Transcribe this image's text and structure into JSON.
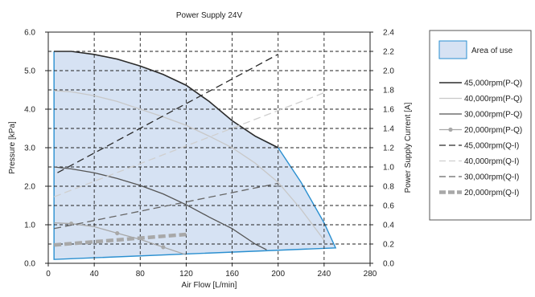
{
  "chart_data": {
    "type": "line",
    "title": "Power Supply 24V",
    "xlabel": "Air Flow [L/min]",
    "ylabel": "Pressure [kPa]",
    "y2label": "Power Supply Current [A]",
    "xlim": [
      0,
      280
    ],
    "ylim": [
      0,
      6
    ],
    "y2lim": [
      0,
      2.4
    ],
    "xticks": [
      "0",
      "40",
      "80",
      "120",
      "160",
      "200",
      "240",
      "280"
    ],
    "yticks": [
      "0.0",
      "1.0",
      "2.0",
      "3.0",
      "4.0",
      "5.0",
      "6.0"
    ],
    "y2ticks": [
      "0.0",
      "0.2",
      "0.4",
      "0.6",
      "0.8",
      "1.0",
      "1.2",
      "1.4",
      "1.6",
      "1.8",
      "2.0",
      "2.2",
      "2.4"
    ],
    "grid": true,
    "legend_position": "right",
    "area_of_use": {
      "name": "Area of use",
      "points": [
        [
          5,
          5.5
        ],
        [
          20,
          5.5
        ],
        [
          40,
          5.42
        ],
        [
          60,
          5.3
        ],
        [
          80,
          5.12
        ],
        [
          100,
          4.9
        ],
        [
          120,
          4.62
        ],
        [
          140,
          4.2
        ],
        [
          160,
          3.7
        ],
        [
          180,
          3.3
        ],
        [
          200,
          3.0
        ],
        [
          220,
          2.1
        ],
        [
          240,
          1.05
        ],
        [
          250,
          0.4
        ],
        [
          5,
          0.1
        ]
      ],
      "color": "#d6e2f3",
      "edge_color": "#2a8fd0"
    },
    "series": [
      {
        "name": "45,000rpm(P-Q)",
        "axis": "left",
        "style": "solid",
        "color": "#2b2b2b",
        "x": [
          5,
          20,
          40,
          60,
          80,
          100,
          120,
          140,
          160,
          180,
          200
        ],
        "y": [
          5.5,
          5.5,
          5.42,
          5.3,
          5.12,
          4.9,
          4.62,
          4.2,
          3.7,
          3.3,
          3.0
        ]
      },
      {
        "name": "40,000rpm(P-Q)",
        "axis": "left",
        "style": "solid",
        "color": "#c8c8c8",
        "x": [
          5,
          20,
          40,
          60,
          80,
          100,
          120,
          140,
          160,
          180,
          200,
          220,
          240
        ],
        "y": [
          4.48,
          4.45,
          4.35,
          4.2,
          4.0,
          3.8,
          3.58,
          3.3,
          3.0,
          2.6,
          2.1,
          1.4,
          0.6
        ]
      },
      {
        "name": "30,000rpm(P-Q)",
        "axis": "left",
        "style": "solid",
        "color": "#555555",
        "x": [
          5,
          20,
          40,
          60,
          80,
          100,
          120,
          140,
          160,
          180,
          190
        ],
        "y": [
          2.5,
          2.45,
          2.35,
          2.2,
          2.02,
          1.8,
          1.52,
          1.2,
          0.9,
          0.5,
          0.35
        ]
      },
      {
        "name": "20,000rpm(P-Q)",
        "axis": "left",
        "style": "marker",
        "color": "#a8a8a8",
        "x": [
          5,
          20,
          40,
          60,
          80,
          100,
          120
        ],
        "y": [
          1.05,
          1.03,
          0.95,
          0.78,
          0.62,
          0.42,
          0.22
        ]
      },
      {
        "name": "45,000rpm(Q-I)",
        "axis": "right",
        "style": "dash",
        "color": "#2b2b2b",
        "x": [
          8,
          200
        ],
        "y": [
          0.94,
          2.17
        ]
      },
      {
        "name": "40,000rpm(Q-I)",
        "axis": "right",
        "style": "dash",
        "color": "#cfcfcf",
        "x": [
          5,
          240
        ],
        "y": [
          0.69,
          1.77
        ]
      },
      {
        "name": "30,000rpm(Q-I)",
        "axis": "right",
        "style": "dash",
        "color": "#666666",
        "x": [
          5,
          200
        ],
        "y": [
          0.36,
          0.83
        ]
      },
      {
        "name": "20,000rpm(Q-I)",
        "axis": "right",
        "style": "thickdash",
        "color": "#a8a8a8",
        "x": [
          5,
          120
        ],
        "y": [
          0.19,
          0.3
        ]
      }
    ]
  }
}
